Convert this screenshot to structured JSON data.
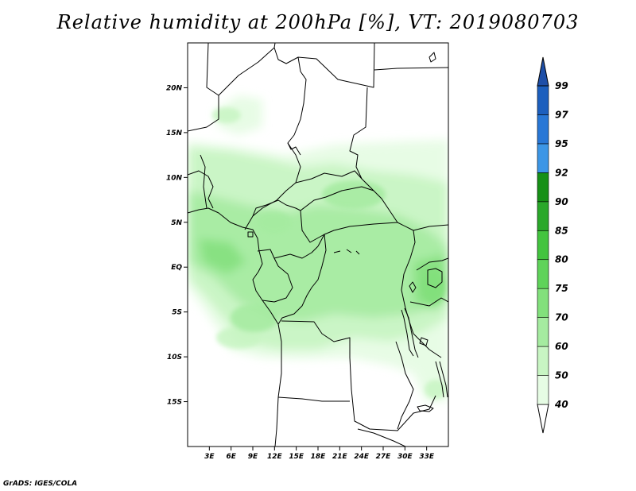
{
  "title": "Relative humidity at 200hPa [%], VT: 2019080703",
  "credit": "GrADS: IGES/COLA",
  "map": {
    "lon_range": [
      0,
      36
    ],
    "lat_range": [
      -20,
      25
    ],
    "lat_ticks": [
      {
        "value": 20,
        "label": "20N"
      },
      {
        "value": 15,
        "label": "15N"
      },
      {
        "value": 10,
        "label": "10N"
      },
      {
        "value": 5,
        "label": "5N"
      },
      {
        "value": 0,
        "label": "EQ"
      },
      {
        "value": -5,
        "label": "5S"
      },
      {
        "value": -10,
        "label": "10S"
      },
      {
        "value": -15,
        "label": "15S"
      }
    ],
    "lon_ticks": [
      {
        "value": 3,
        "label": "3E"
      },
      {
        "value": 6,
        "label": "6E"
      },
      {
        "value": 9,
        "label": "9E"
      },
      {
        "value": 12,
        "label": "12E"
      },
      {
        "value": 15,
        "label": "15E"
      },
      {
        "value": 18,
        "label": "18E"
      },
      {
        "value": 21,
        "label": "21E"
      },
      {
        "value": 24,
        "label": "24E"
      },
      {
        "value": 27,
        "label": "27E"
      },
      {
        "value": 30,
        "label": "30E"
      },
      {
        "value": 33,
        "label": "33E"
      }
    ]
  },
  "colorbar": {
    "levels": [
      "40",
      "50",
      "60",
      "70",
      "75",
      "80",
      "85",
      "90",
      "92",
      "95",
      "97",
      "99"
    ],
    "colors": [
      "#ffffff",
      "#e6fce4",
      "#c8f5c3",
      "#a5eba0",
      "#82e07c",
      "#5fd35a",
      "#43c43f",
      "#2aa82a",
      "#169016",
      "#3c96e6",
      "#2877d6",
      "#1c5fbe",
      "#1e4fa8"
    ]
  }
}
